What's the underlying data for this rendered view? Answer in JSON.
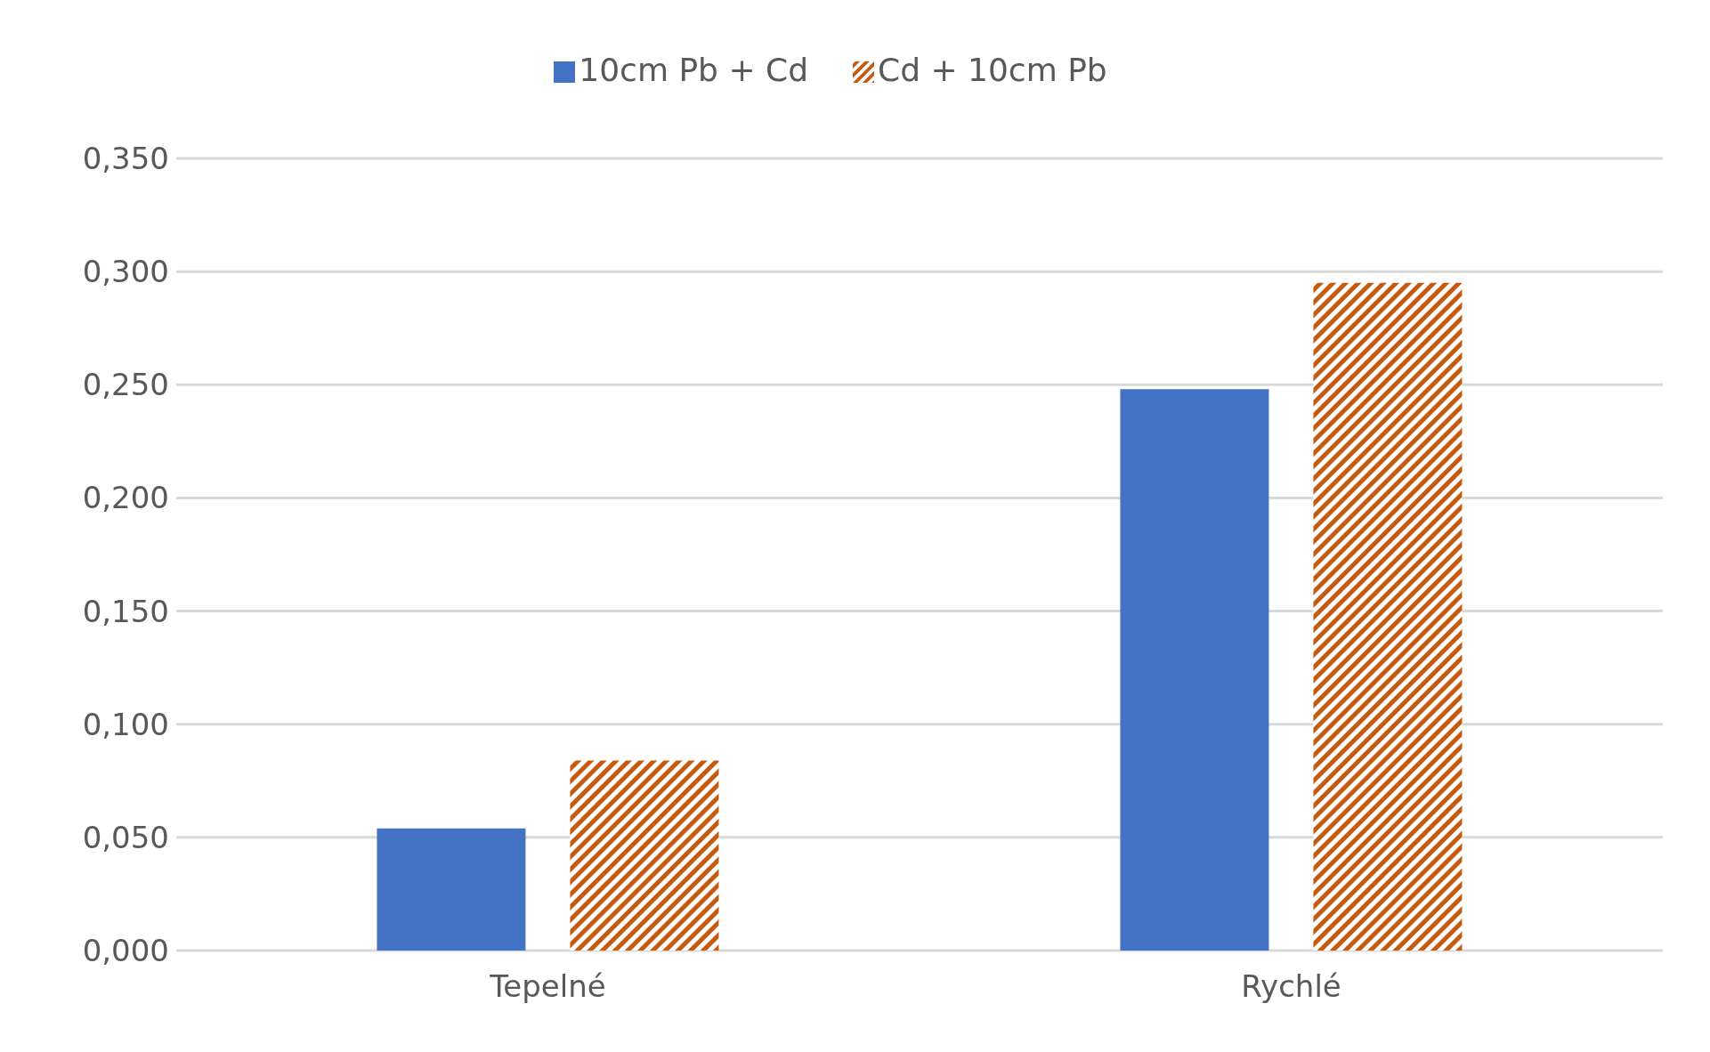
{
  "chart_data": {
    "type": "bar",
    "categories": [
      "Tepelné",
      "Rychlé"
    ],
    "series": [
      {
        "name": "10cm Pb + Cd",
        "color": "#4472c4",
        "values": [
          0.054,
          0.248
        ]
      },
      {
        "name": "Cd + 10cm Pb",
        "color": "#c55a11",
        "values": [
          0.084,
          0.295
        ]
      }
    ],
    "ylim": [
      0,
      0.35
    ],
    "yticks": [
      {
        "value": 0,
        "label": "0,000"
      },
      {
        "value": 0.05,
        "label": "0,050"
      },
      {
        "value": 0.1,
        "label": "0,100"
      },
      {
        "value": 0.15,
        "label": "0,150"
      },
      {
        "value": 0.2,
        "label": "0,200"
      },
      {
        "value": 0.25,
        "label": "0,250"
      },
      {
        "value": 0.3,
        "label": "0,300"
      },
      {
        "value": 0.35,
        "label": "0,350"
      }
    ],
    "grid": "y",
    "legend": "top"
  }
}
